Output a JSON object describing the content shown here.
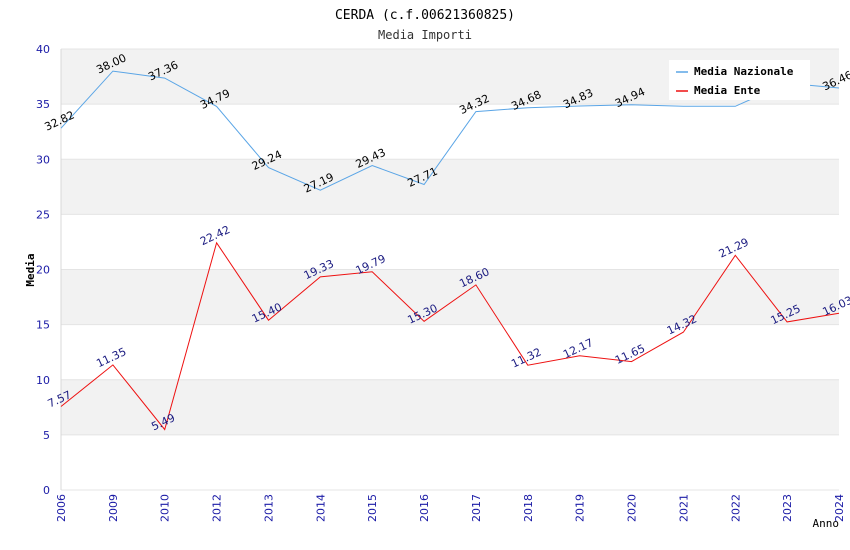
{
  "chart_data": {
    "type": "line",
    "title": "CERDA (c.f.00621360825)",
    "subtitle": "Media Importi",
    "xlabel": "Anno",
    "ylabel": "Media",
    "ylim": [
      0,
      40
    ],
    "yticks": [
      0,
      5,
      10,
      15,
      20,
      25,
      30,
      35,
      40
    ],
    "categories": [
      "2006",
      "2009",
      "2010",
      "2012",
      "2013",
      "2014",
      "2015",
      "2016",
      "2017",
      "2018",
      "2019",
      "2020",
      "2021",
      "2022",
      "2023",
      "2024"
    ],
    "grid": "horizontal bands",
    "legend_position": "top-right",
    "series": [
      {
        "name": "Media Nazionale",
        "color": "#5aa5e6",
        "values": [
          32.82,
          38.0,
          37.36,
          34.79,
          29.24,
          27.19,
          29.43,
          27.71,
          34.32,
          34.68,
          34.83,
          34.94,
          34.8,
          34.8,
          36.9,
          36.46
        ],
        "data_labels": [
          "32.82",
          "38.00",
          "37.36",
          "34.79",
          "29.24",
          "27.19",
          "29.43",
          "27.71",
          "34.32",
          "34.68",
          "34.83",
          "34.94",
          "",
          "",
          "",
          "36.46"
        ]
      },
      {
        "name": "Media Ente",
        "color": "#ee1111",
        "values": [
          7.57,
          11.35,
          5.49,
          22.42,
          15.4,
          19.33,
          19.79,
          15.3,
          18.6,
          11.32,
          12.17,
          11.65,
          14.32,
          21.29,
          15.25,
          16.03
        ],
        "data_labels": [
          "7.57",
          "11.35",
          "5.49",
          "22.42",
          "15.40",
          "19.33",
          "19.79",
          "15.30",
          "18.60",
          "11.32",
          "12.17",
          "11.65",
          "14.32",
          "21.29",
          "15.25",
          "16.03"
        ]
      }
    ]
  }
}
